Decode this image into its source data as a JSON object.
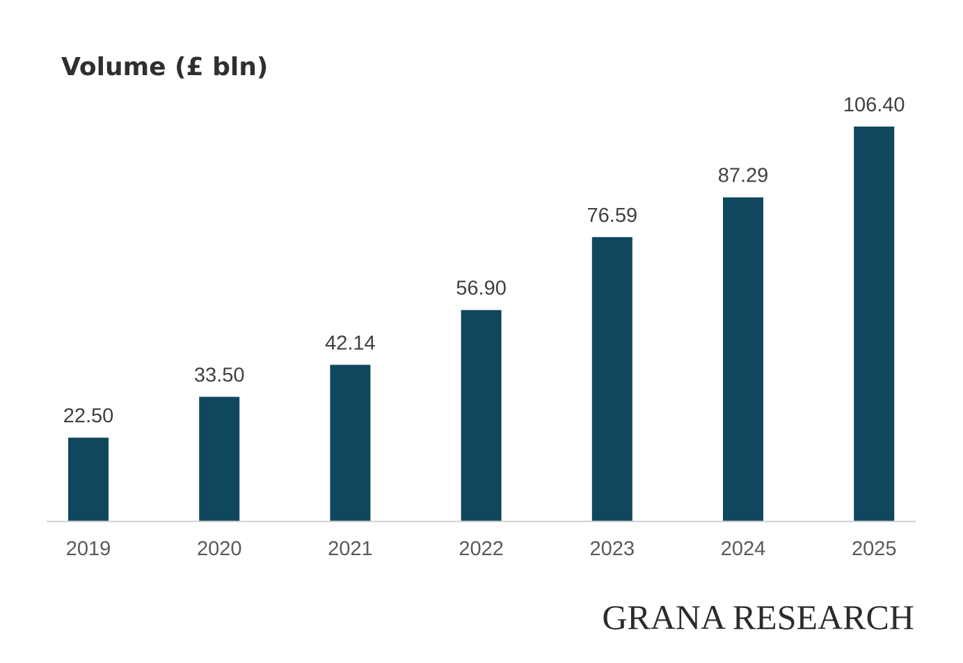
{
  "chart_data": {
    "type": "bar",
    "title": "Volume (£ bln)",
    "categories": [
      "2019",
      "2020",
      "2021",
      "2022",
      "2023",
      "2024",
      "2025"
    ],
    "values": [
      22.5,
      33.5,
      42.14,
      56.9,
      76.59,
      87.29,
      106.4
    ],
    "value_labels": [
      "22.50",
      "33.50",
      "42.14",
      "56.90",
      "76.59",
      "87.29",
      "106.40"
    ],
    "xlabel": "",
    "ylabel": "",
    "ylim": [
      0,
      110
    ],
    "grid": false,
    "legend": "none",
    "bar_color": "#10475f",
    "axis_color": "#d0d0d0"
  },
  "branding": {
    "text": "GRANA RESEARCH"
  }
}
